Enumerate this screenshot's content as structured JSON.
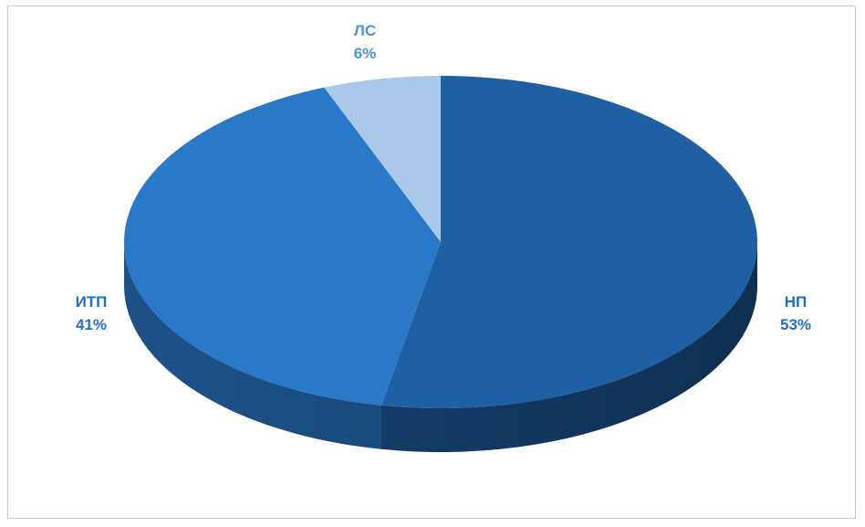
{
  "chart_data": {
    "type": "pie",
    "style": "3d",
    "title": "",
    "slices": [
      {
        "label": "НП",
        "value": 53,
        "display": "53%",
        "color": "#1f5fa3",
        "label_color": "#1f6fc4"
      },
      {
        "label": "ИТП",
        "value": 41,
        "display": "41%",
        "color": "#2a78c8",
        "label_color": "#1f6fc4"
      },
      {
        "label": "ЛС",
        "value": 6,
        "display": "6%",
        "color": "#a9c8ea",
        "label_color": "#4b95dd"
      }
    ],
    "legend": "none"
  }
}
